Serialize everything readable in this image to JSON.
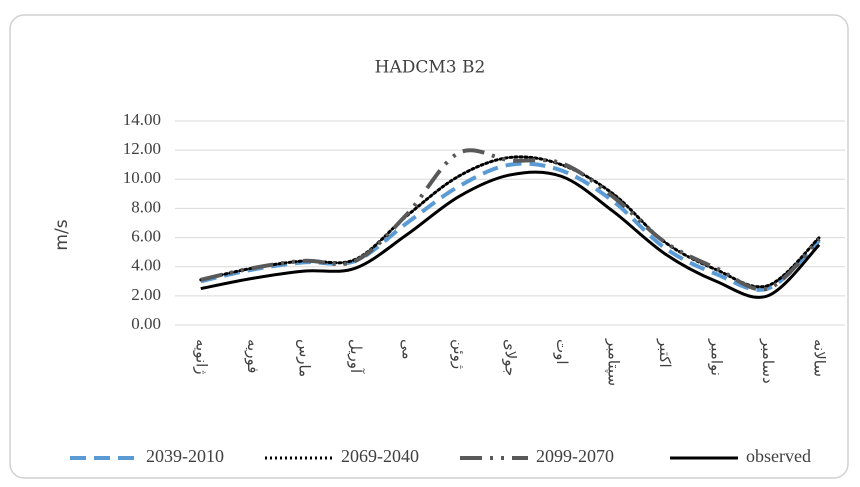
{
  "chart_data": {
    "type": "line",
    "title": "HADCM3 B2",
    "ylabel": "m/s",
    "categories": [
      "ژانویه",
      "فوریه",
      "مارس",
      "آوریل",
      "می",
      "ژوئن",
      "جولای",
      "اوت",
      "سپتامبر",
      "اکتبر",
      "نوامبر",
      "دسامبر",
      "سالانه"
    ],
    "series": [
      {
        "name": "2039-2010",
        "color": "#5b9bd5",
        "dash": "dashed",
        "values": [
          3.0,
          3.8,
          4.3,
          4.4,
          7.0,
          9.5,
          11.0,
          10.6,
          8.5,
          5.3,
          3.5,
          2.5,
          5.8
        ]
      },
      {
        "name": "2069-2040",
        "color": "#000000",
        "dash": "dotted",
        "values": [
          3.1,
          3.9,
          4.4,
          4.5,
          7.5,
          10.2,
          11.5,
          11.0,
          9.0,
          5.7,
          3.8,
          2.7,
          6.0
        ]
      },
      {
        "name": "2099-2070",
        "color": "#595959",
        "dash": "dashdot",
        "values": [
          3.1,
          3.9,
          4.4,
          4.4,
          7.6,
          11.8,
          11.3,
          11.1,
          8.8,
          5.7,
          3.9,
          2.5,
          5.9
        ]
      },
      {
        "name": "observed",
        "color": "#000000",
        "dash": "solid",
        "values": [
          2.5,
          3.2,
          3.7,
          3.9,
          6.2,
          8.8,
          10.3,
          10.2,
          7.8,
          4.9,
          3.0,
          2.0,
          5.5
        ]
      }
    ],
    "ylim": [
      0,
      14
    ],
    "yticks": [
      {
        "value": 0,
        "label": "0.00"
      },
      {
        "value": 2,
        "label": "2.00"
      },
      {
        "value": 4,
        "label": "4.00"
      },
      {
        "value": 6,
        "label": "6.00"
      },
      {
        "value": 8,
        "label": "8.00"
      },
      {
        "value": 10,
        "label": "10.00"
      },
      {
        "value": 12,
        "label": "12.00"
      },
      {
        "value": 14,
        "label": "14.00"
      }
    ],
    "grid": true,
    "legend": "bottom"
  }
}
